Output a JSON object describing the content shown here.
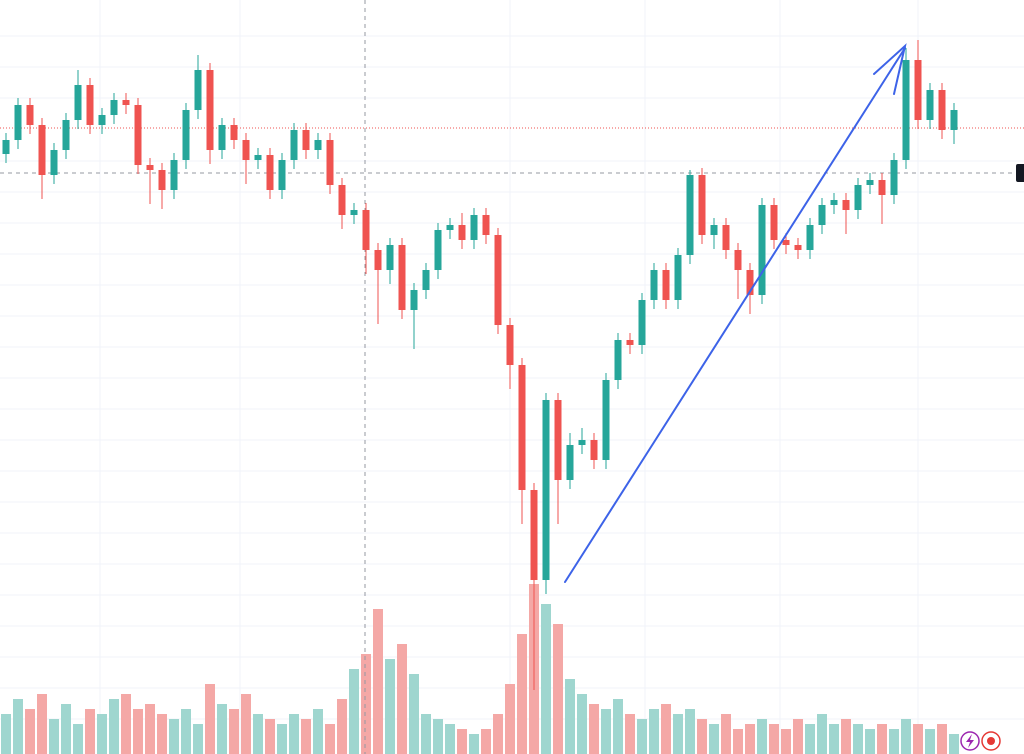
{
  "chart_data": {
    "type": "candlestick",
    "ylim": [
      0,
      754
    ],
    "y2lim": [
      0,
      754
    ],
    "up_color": "#26a69a",
    "down_color": "#ef5350",
    "volume_up_color": "#9fd6cf",
    "volume_down_color": "#f4a8a6",
    "open": [
      600,
      614,
      649,
      629,
      579,
      604,
      634,
      669,
      629,
      639,
      654,
      649,
      589,
      584,
      564,
      594,
      644,
      684,
      604,
      629,
      614,
      594,
      599,
      564,
      594,
      624,
      604,
      614,
      569,
      539,
      544,
      504,
      484,
      509,
      444,
      464,
      484,
      524,
      529,
      514,
      539,
      519,
      429,
      389,
      264,
      174,
      354,
      274,
      309,
      314,
      294,
      374,
      414,
      409,
      454,
      484,
      454,
      499,
      579,
      519,
      529,
      504,
      484,
      459,
      549,
      514,
      509,
      504,
      529,
      549,
      554,
      544,
      569,
      574,
      559,
      594,
      694,
      634,
      664,
      624
    ],
    "high": [
      621,
      656,
      656,
      636,
      611,
      641,
      684,
      676,
      646,
      661,
      661,
      656,
      596,
      591,
      601,
      651,
      699,
      691,
      636,
      636,
      621,
      606,
      606,
      601,
      631,
      631,
      621,
      621,
      576,
      551,
      551,
      511,
      516,
      516,
      471,
      491,
      531,
      536,
      541,
      546,
      546,
      526,
      436,
      396,
      271,
      361,
      361,
      321,
      326,
      321,
      381,
      421,
      421,
      461,
      491,
      491,
      506,
      584,
      586,
      536,
      536,
      511,
      491,
      556,
      556,
      521,
      516,
      536,
      556,
      561,
      561,
      576,
      581,
      581,
      601,
      706,
      714,
      671,
      671,
      651
    ],
    "low": [
      591,
      605,
      620,
      555,
      570,
      595,
      625,
      620,
      620,
      630,
      640,
      580,
      550,
      545,
      555,
      585,
      635,
      590,
      595,
      605,
      570,
      585,
      555,
      555,
      585,
      595,
      595,
      560,
      525,
      530,
      480,
      430,
      470,
      435,
      405,
      455,
      475,
      515,
      505,
      505,
      510,
      420,
      365,
      230,
      64,
      160,
      230,
      265,
      300,
      285,
      285,
      365,
      400,
      400,
      445,
      445,
      445,
      490,
      510,
      505,
      495,
      455,
      440,
      450,
      505,
      500,
      495,
      495,
      520,
      540,
      520,
      535,
      560,
      530,
      550,
      585,
      625,
      625,
      615,
      610
    ],
    "close": [
      614,
      649,
      629,
      579,
      604,
      634,
      669,
      629,
      639,
      654,
      649,
      589,
      584,
      564,
      594,
      644,
      684,
      604,
      629,
      614,
      594,
      599,
      564,
      594,
      624,
      604,
      614,
      569,
      539,
      544,
      504,
      484,
      509,
      444,
      464,
      484,
      524,
      529,
      514,
      539,
      519,
      429,
      389,
      264,
      174,
      354,
      274,
      309,
      314,
      294,
      374,
      414,
      409,
      454,
      484,
      454,
      499,
      579,
      519,
      529,
      504,
      484,
      459,
      549,
      514,
      509,
      504,
      529,
      549,
      554,
      544,
      569,
      574,
      559,
      594,
      694,
      634,
      664,
      624,
      644
    ],
    "volume": [
      40,
      55,
      45,
      60,
      35,
      50,
      30,
      45,
      40,
      55,
      60,
      45,
      50,
      40,
      35,
      45,
      30,
      70,
      50,
      45,
      60,
      40,
      35,
      30,
      40,
      35,
      45,
      30,
      55,
      85,
      100,
      145,
      95,
      110,
      80,
      40,
      35,
      30,
      25,
      20,
      25,
      40,
      70,
      120,
      170,
      150,
      130,
      75,
      60,
      50,
      45,
      55,
      40,
      35,
      45,
      50,
      40,
      45,
      35,
      30,
      40,
      25,
      30,
      35,
      30,
      25,
      35,
      30,
      40,
      30,
      35,
      30,
      25,
      30,
      25,
      35,
      30,
      25,
      30,
      20
    ]
  }
}
